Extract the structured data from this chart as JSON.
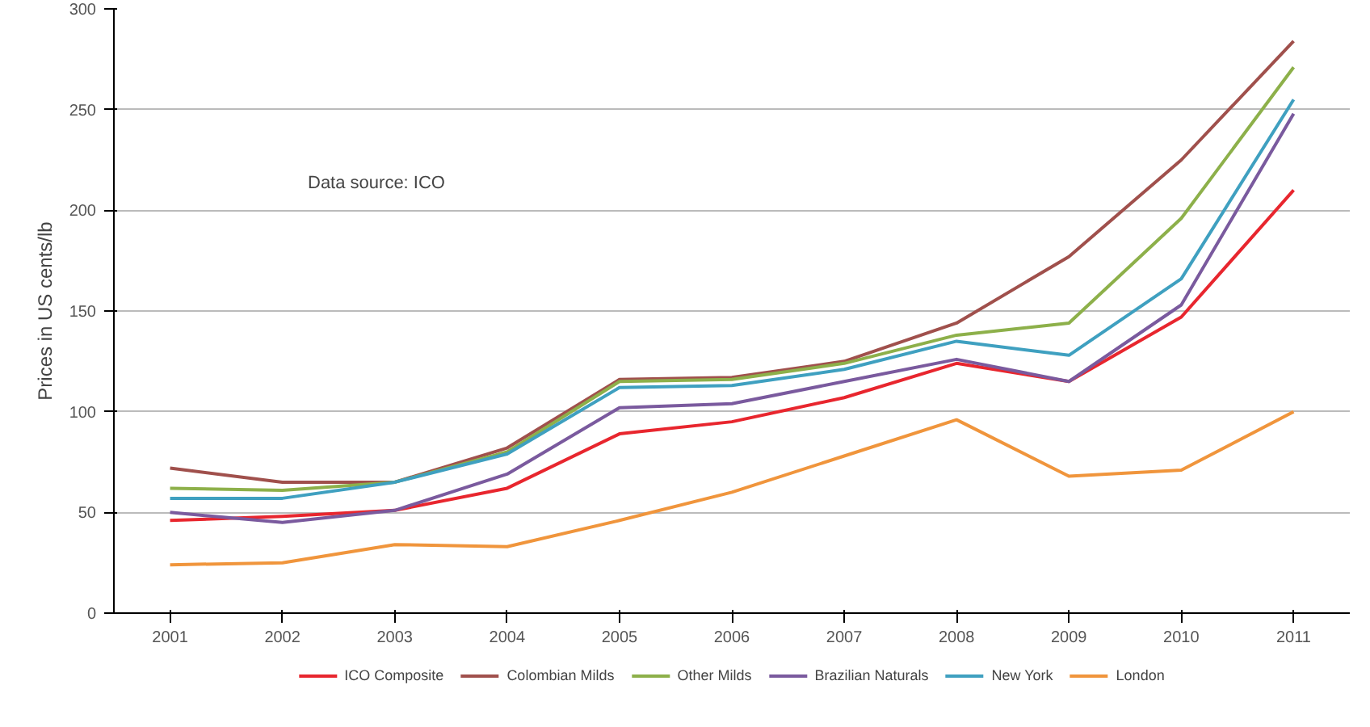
{
  "chart_data": {
    "type": "line",
    "ylabel": "Prices in US cents/lb",
    "annotations": [
      "Data source: ICO"
    ],
    "categories": [
      "2001",
      "2002",
      "2003",
      "2004",
      "2005",
      "2006",
      "2007",
      "2008",
      "2009",
      "2010",
      "2011"
    ],
    "ylim": [
      0,
      300
    ],
    "yticks": [
      0,
      50,
      100,
      150,
      200,
      250,
      300
    ],
    "grid": "y",
    "legend": "bottom",
    "marker": "none",
    "line_style": "solid",
    "series": [
      {
        "name": "ICO Composite",
        "color": "#e8262e",
        "values": [
          46,
          48,
          51,
          62,
          89,
          95,
          107,
          124,
          115,
          147,
          210
        ]
      },
      {
        "name": "Colombian Milds",
        "color": "#a0504c",
        "values": [
          72,
          65,
          65,
          82,
          116,
          117,
          125,
          144,
          177,
          225,
          284
        ]
      },
      {
        "name": "Other Milds",
        "color": "#8db04a",
        "values": [
          62,
          61,
          65,
          80,
          115,
          116,
          124,
          138,
          144,
          196,
          271
        ]
      },
      {
        "name": "Brazilian Naturals",
        "color": "#7a5a9e",
        "values": [
          50,
          45,
          51,
          69,
          102,
          104,
          115,
          126,
          115,
          153,
          248
        ]
      },
      {
        "name": "New York",
        "color": "#3fa0c0",
        "values": [
          57,
          57,
          65,
          79,
          112,
          113,
          121,
          135,
          128,
          166,
          255
        ]
      },
      {
        "name": "London",
        "color": "#f0953c",
        "values": [
          24,
          25,
          34,
          33,
          46,
          60,
          78,
          96,
          68,
          71,
          100
        ]
      }
    ]
  }
}
